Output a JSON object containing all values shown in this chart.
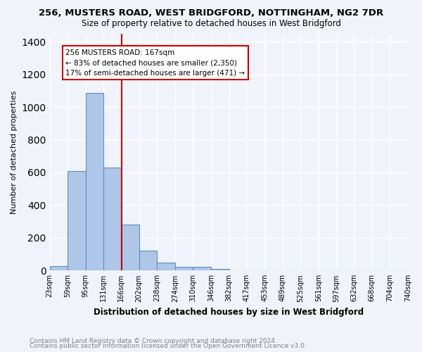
{
  "title": "256, MUSTERS ROAD, WEST BRIDGFORD, NOTTINGHAM, NG2 7DR",
  "subtitle": "Size of property relative to detached houses in West Bridgford",
  "xlabel": "Distribution of detached houses by size in West Bridgford",
  "ylabel": "Number of detached properties",
  "footnote1": "Contains HM Land Registry data © Crown copyright and database right 2024.",
  "footnote2": "Contains public sector information licensed under the Open Government Licence v3.0.",
  "bin_edges": [
    23,
    59,
    95,
    131,
    166,
    202,
    238,
    274,
    310,
    346,
    382,
    417,
    453,
    489,
    525,
    561,
    597,
    632,
    668,
    704,
    740
  ],
  "bar_heights": [
    28,
    610,
    1085,
    630,
    280,
    120,
    48,
    22,
    22,
    12,
    0,
    0,
    0,
    0,
    0,
    0,
    0,
    0,
    0,
    0
  ],
  "bar_color": "#aec6e8",
  "bar_edge_color": "#5a8fc0",
  "property_size": 167,
  "vline_color": "#cc0000",
  "ann_line1": "256 MUSTERS ROAD: 167sqm",
  "ann_line2": "← 83% of detached houses are smaller (2,350)",
  "ann_line3": "17% of semi-detached houses are larger (471) →",
  "annotation_box_color": "white",
  "annotation_box_edge": "#cc0000",
  "ylim": [
    0,
    1450
  ],
  "background_color": "#f0f4fa",
  "grid_color": "#ffffff"
}
